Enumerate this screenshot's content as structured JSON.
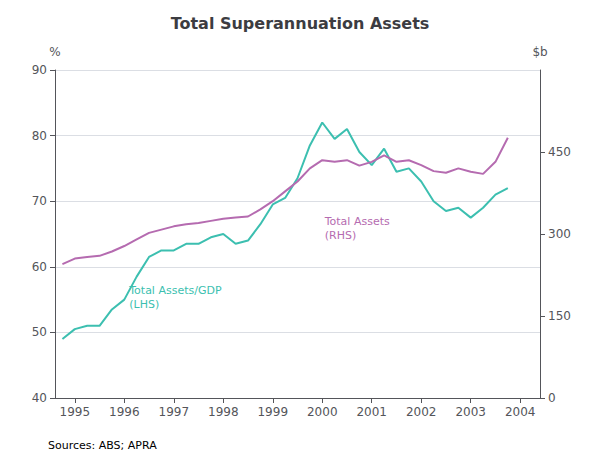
{
  "chart_data": {
    "type": "line",
    "title": "Total Superannuation Assets",
    "source": "Sources: ABS; APRA",
    "x": [
      1994.75,
      1995.0,
      1995.25,
      1995.5,
      1995.75,
      1996.0,
      1996.25,
      1996.5,
      1996.75,
      1997.0,
      1997.25,
      1997.5,
      1997.75,
      1998.0,
      1998.25,
      1998.5,
      1998.75,
      1999.0,
      1999.25,
      1999.5,
      1999.75,
      2000.0,
      2000.25,
      2000.5,
      2000.75,
      2001.0,
      2001.25,
      2001.5,
      2001.75,
      2002.0,
      2002.25,
      2002.5,
      2002.75,
      2003.0,
      2003.25,
      2003.5,
      2003.75
    ],
    "xlim": [
      1994.6,
      2004.4
    ],
    "xticks": [
      1995,
      1996,
      1997,
      1998,
      1999,
      2000,
      2001,
      2002,
      2003,
      2004
    ],
    "ylim": [
      40,
      90
    ],
    "yticks": [
      40,
      50,
      60,
      70,
      80,
      90
    ],
    "y2lim": [
      0,
      600
    ],
    "y2ticks": [
      0,
      150,
      300,
      450
    ],
    "ylabel": "%",
    "y2label": "$b",
    "grid": true,
    "series": [
      {
        "color": "#3CBFB0",
        "values": [
          49.0,
          50.5,
          51.0,
          51.0,
          53.5,
          55.0,
          58.5,
          61.5,
          62.5,
          62.5,
          63.5,
          63.5,
          64.5,
          65.0,
          63.5,
          64.0,
          66.5,
          69.5,
          70.5,
          73.5,
          78.5,
          82.0,
          79.5,
          81.0,
          77.5,
          75.5,
          78.0,
          74.5,
          75.0,
          73.0,
          70.0,
          68.5,
          69.0,
          67.5,
          69.0,
          71.0,
          72.0
        ]
      },
      {
        "color": "#B56BB0",
        "axis": "y2",
        "values": [
          245,
          255,
          258,
          260,
          268,
          278,
          290,
          302,
          308,
          314,
          318,
          320,
          324,
          328,
          330,
          332,
          345,
          360,
          378,
          396,
          420,
          435,
          432,
          435,
          425,
          432,
          444,
          432,
          435,
          426,
          415,
          412,
          420,
          414,
          410,
          432,
          476
        ]
      }
    ],
    "annotations": [
      {
        "text": "Total Assets/GDP\n(LHS)",
        "x": 1996.1,
        "y": 57.5,
        "color": "#3CBFB0"
      },
      {
        "text": "Total Assets\n(RHS)",
        "x": 2000.05,
        "y": 68.0,
        "color": "#B56BB0"
      }
    ]
  }
}
